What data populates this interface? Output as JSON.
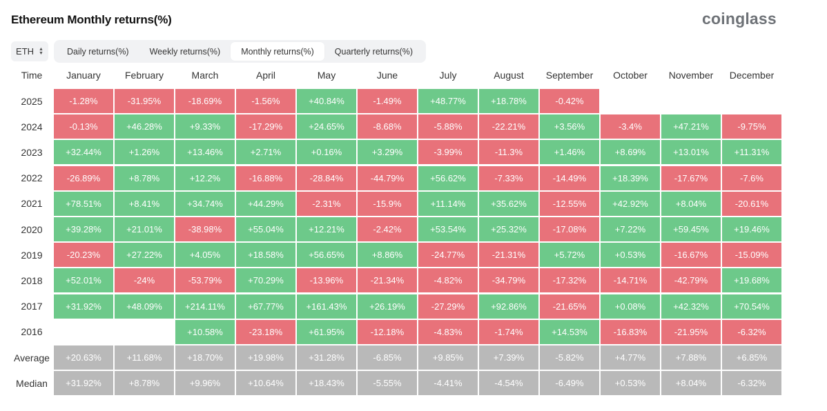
{
  "header": {
    "title": "Ethereum Monthly returns(%)",
    "brand": "coinglass"
  },
  "controls": {
    "asset": "ETH",
    "tabs": [
      {
        "label": "Daily returns(%)",
        "active": false
      },
      {
        "label": "Weekly returns(%)",
        "active": false
      },
      {
        "label": "Monthly returns(%)",
        "active": true
      },
      {
        "label": "Quarterly returns(%)",
        "active": false
      }
    ]
  },
  "colors": {
    "positive": "#6dc98a",
    "negative": "#e8727a",
    "summary": "#b9b9b9"
  },
  "chart_data": {
    "type": "table",
    "title": "Ethereum Monthly returns(%)",
    "corner_label": "Time",
    "columns": [
      "January",
      "February",
      "March",
      "April",
      "May",
      "June",
      "July",
      "August",
      "September",
      "October",
      "November",
      "December"
    ],
    "rows": [
      {
        "label": "2025",
        "kind": "year",
        "values": [
          "-1.28%",
          "-31.95%",
          "-18.69%",
          "-1.56%",
          "+40.84%",
          "-1.49%",
          "+48.77%",
          "+18.78%",
          "-0.42%",
          "",
          "",
          ""
        ]
      },
      {
        "label": "2024",
        "kind": "year",
        "values": [
          "-0.13%",
          "+46.28%",
          "+9.33%",
          "-17.29%",
          "+24.65%",
          "-8.68%",
          "-5.88%",
          "-22.21%",
          "+3.56%",
          "-3.4%",
          "+47.21%",
          "-9.75%"
        ]
      },
      {
        "label": "2023",
        "kind": "year",
        "values": [
          "+32.44%",
          "+1.26%",
          "+13.46%",
          "+2.71%",
          "+0.16%",
          "+3.29%",
          "-3.99%",
          "-11.3%",
          "+1.46%",
          "+8.69%",
          "+13.01%",
          "+11.31%"
        ]
      },
      {
        "label": "2022",
        "kind": "year",
        "values": [
          "-26.89%",
          "+8.78%",
          "+12.2%",
          "-16.88%",
          "-28.84%",
          "-44.79%",
          "+56.62%",
          "-7.33%",
          "-14.49%",
          "+18.39%",
          "-17.67%",
          "-7.6%"
        ]
      },
      {
        "label": "2021",
        "kind": "year",
        "values": [
          "+78.51%",
          "+8.41%",
          "+34.74%",
          "+44.29%",
          "-2.31%",
          "-15.9%",
          "+11.14%",
          "+35.62%",
          "-12.55%",
          "+42.92%",
          "+8.04%",
          "-20.61%"
        ]
      },
      {
        "label": "2020",
        "kind": "year",
        "values": [
          "+39.28%",
          "+21.01%",
          "-38.98%",
          "+55.04%",
          "+12.21%",
          "-2.42%",
          "+53.54%",
          "+25.32%",
          "-17.08%",
          "+7.22%",
          "+59.45%",
          "+19.46%"
        ]
      },
      {
        "label": "2019",
        "kind": "year",
        "values": [
          "-20.23%",
          "+27.22%",
          "+4.05%",
          "+18.58%",
          "+56.65%",
          "+8.86%",
          "-24.77%",
          "-21.31%",
          "+5.72%",
          "+0.53%",
          "-16.67%",
          "-15.09%"
        ]
      },
      {
        "label": "2018",
        "kind": "year",
        "values": [
          "+52.01%",
          "-24%",
          "-53.79%",
          "+70.29%",
          "-13.96%",
          "-21.34%",
          "-4.82%",
          "-34.79%",
          "-17.32%",
          "-14.71%",
          "-42.79%",
          "+19.68%"
        ]
      },
      {
        "label": "2017",
        "kind": "year",
        "values": [
          "+31.92%",
          "+48.09%",
          "+214.11%",
          "+67.77%",
          "+161.43%",
          "+26.19%",
          "-27.29%",
          "+92.86%",
          "-21.65%",
          "+0.08%",
          "+42.32%",
          "+70.54%"
        ]
      },
      {
        "label": "2016",
        "kind": "year",
        "values": [
          "",
          "",
          "+10.58%",
          "-23.18%",
          "+61.95%",
          "-12.18%",
          "-4.83%",
          "-1.74%",
          "+14.53%",
          "-16.83%",
          "-21.95%",
          "-6.32%"
        ]
      },
      {
        "label": "Average",
        "kind": "summary",
        "values": [
          "+20.63%",
          "+11.68%",
          "+18.70%",
          "+19.98%",
          "+31.28%",
          "-6.85%",
          "+9.85%",
          "+7.39%",
          "-5.82%",
          "+4.77%",
          "+7.88%",
          "+6.85%"
        ]
      },
      {
        "label": "Median",
        "kind": "summary",
        "values": [
          "+31.92%",
          "+8.78%",
          "+9.96%",
          "+10.64%",
          "+18.43%",
          "-5.55%",
          "-4.41%",
          "-4.54%",
          "-6.49%",
          "+0.53%",
          "+8.04%",
          "-6.32%"
        ]
      }
    ]
  }
}
